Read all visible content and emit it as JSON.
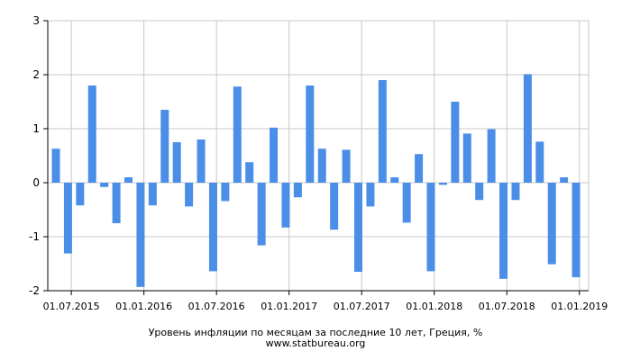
{
  "chart_data": {
    "type": "bar",
    "title": "Уровень инфляции по месяцам за последние 10 лет, Греция, %",
    "source": "www.statbureau.org",
    "ylim": [
      -2,
      3
    ],
    "y_ticks": [
      "-2",
      "-1",
      "0",
      "1",
      "2",
      "3"
    ],
    "x_tick_labels": [
      "01.07.2015",
      "01.01.2016",
      "01.07.2016",
      "01.01.2017",
      "01.07.2017",
      "01.01.2018",
      "01.07.2018",
      "01.01.2019"
    ],
    "grid": true,
    "bar_color": "#4a8ee8",
    "categories": [
      "2015-06",
      "2015-07",
      "2015-08",
      "2015-09",
      "2015-10",
      "2015-11",
      "2015-12",
      "2016-01",
      "2016-02",
      "2016-03",
      "2016-04",
      "2016-05",
      "2016-06",
      "2016-07",
      "2016-08",
      "2016-09",
      "2016-10",
      "2016-11",
      "2016-12",
      "2017-01",
      "2017-02",
      "2017-03",
      "2017-04",
      "2017-05",
      "2017-06",
      "2017-07",
      "2017-08",
      "2017-09",
      "2017-10",
      "2017-11",
      "2017-12",
      "2018-01",
      "2018-02",
      "2018-03",
      "2018-04",
      "2018-05",
      "2018-06",
      "2018-07",
      "2018-08",
      "2018-09",
      "2018-10",
      "2018-11",
      "2018-12",
      "2019-01"
    ],
    "values": [
      0.63,
      -1.31,
      -0.42,
      1.8,
      -0.08,
      -0.75,
      0.1,
      -1.93,
      -0.42,
      1.35,
      0.75,
      -0.44,
      0.8,
      -1.64,
      -0.34,
      1.78,
      0.38,
      -1.16,
      1.02,
      -0.83,
      -0.27,
      1.8,
      0.63,
      -0.87,
      0.61,
      -1.65,
      -0.44,
      1.9,
      0.1,
      -0.74,
      0.53,
      -1.64,
      -0.04,
      1.5,
      0.91,
      -0.32,
      0.99,
      -1.78,
      -0.32,
      2.01,
      0.76,
      -1.51,
      0.1,
      -1.75
    ]
  }
}
